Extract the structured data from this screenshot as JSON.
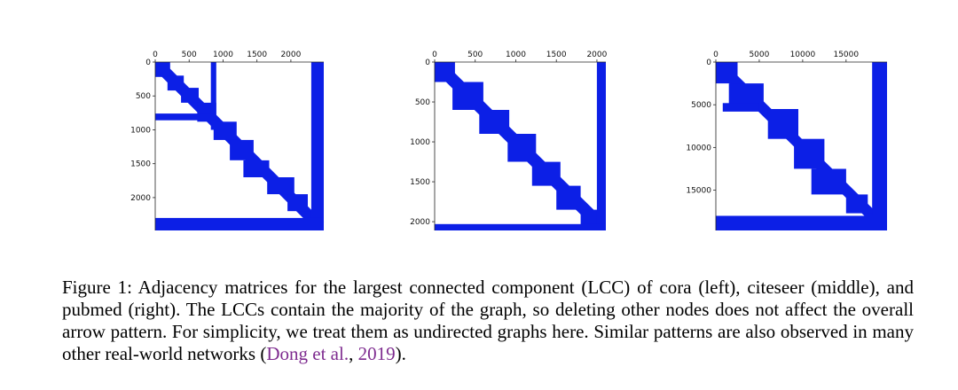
{
  "accent_color": "#0c1fe6",
  "chart_data": [
    {
      "type": "heatmap",
      "dataset": "cora",
      "n": 2485,
      "x_ticks": [
        0,
        500,
        1000,
        1500,
        2000
      ],
      "y_ticks": [
        0,
        500,
        1000,
        1500,
        2000
      ],
      "xlim": [
        0,
        2485
      ],
      "ylim": [
        2485,
        0
      ],
      "x_axis_position": "top",
      "grid": false,
      "band_width": 120,
      "diagonal_blocks": [
        {
          "r0": 0,
          "r1": 220,
          "c0": 0,
          "c1": 220
        },
        {
          "r0": 200,
          "r1": 420,
          "c0": 180,
          "c1": 420
        },
        {
          "r0": 380,
          "r1": 600,
          "c0": 380,
          "c1": 640
        },
        {
          "r0": 600,
          "r1": 880,
          "c0": 620,
          "c1": 900
        },
        {
          "r0": 880,
          "r1": 1150,
          "c0": 860,
          "c1": 1200
        },
        {
          "r0": 1150,
          "r1": 1450,
          "c0": 1100,
          "c1": 1450
        },
        {
          "r0": 1450,
          "r1": 1700,
          "c0": 1300,
          "c1": 1680
        },
        {
          "r0": 1700,
          "r1": 1950,
          "c0": 1650,
          "c1": 2050
        },
        {
          "r0": 1950,
          "r1": 2200,
          "c0": 1950,
          "c1": 2250
        },
        {
          "r0": 2200,
          "r1": 2485,
          "c0": 2200,
          "c1": 2485
        }
      ],
      "off_diagonal_blocks": [
        {
          "r0": 0,
          "r1": 1000,
          "c0": 820,
          "c1": 900
        },
        {
          "r0": 760,
          "r1": 860,
          "c0": 0,
          "c1": 880
        },
        {
          "r0": 0,
          "r1": 2485,
          "c0": 2300,
          "c1": 2485
        },
        {
          "r0": 2300,
          "r1": 2485,
          "c0": 0,
          "c1": 2485
        }
      ]
    },
    {
      "type": "heatmap",
      "dataset": "citeseer",
      "n": 2110,
      "x_ticks": [
        0,
        500,
        1000,
        1500,
        2000
      ],
      "y_ticks": [
        0,
        500,
        1000,
        1500,
        2000
      ],
      "xlim": [
        0,
        2110
      ],
      "ylim": [
        2110,
        0
      ],
      "x_axis_position": "top",
      "grid": false,
      "band_width": 110,
      "diagonal_blocks": [
        {
          "r0": 0,
          "r1": 250,
          "c0": 0,
          "c1": 250
        },
        {
          "r0": 250,
          "r1": 600,
          "c0": 220,
          "c1": 600
        },
        {
          "r0": 600,
          "r1": 900,
          "c0": 550,
          "c1": 920
        },
        {
          "r0": 900,
          "r1": 1250,
          "c0": 900,
          "c1": 1250
        },
        {
          "r0": 1250,
          "r1": 1550,
          "c0": 1200,
          "c1": 1550
        },
        {
          "r0": 1550,
          "r1": 1850,
          "c0": 1500,
          "c1": 1800
        },
        {
          "r0": 1850,
          "r1": 2110,
          "c0": 1800,
          "c1": 2110
        }
      ],
      "off_diagonal_blocks": [
        {
          "r0": 0,
          "r1": 2110,
          "c0": 2000,
          "c1": 2110
        },
        {
          "r0": 2030,
          "r1": 2110,
          "c0": 0,
          "c1": 2110
        }
      ]
    },
    {
      "type": "heatmap",
      "dataset": "pubmed",
      "n": 19717,
      "x_ticks": [
        0,
        5000,
        10000,
        15000
      ],
      "y_ticks": [
        0,
        5000,
        10000,
        15000
      ],
      "xlim": [
        0,
        19717
      ],
      "ylim": [
        19717,
        0
      ],
      "x_axis_position": "top",
      "grid": false,
      "band_width": 900,
      "diagonal_blocks": [
        {
          "r0": 0,
          "r1": 2500,
          "c0": 0,
          "c1": 2500
        },
        {
          "r0": 2500,
          "r1": 5500,
          "c0": 1500,
          "c1": 5500
        },
        {
          "r0": 5500,
          "r1": 9000,
          "c0": 6000,
          "c1": 9500
        },
        {
          "r0": 9000,
          "r1": 12500,
          "c0": 9000,
          "c1": 12500
        },
        {
          "r0": 12500,
          "r1": 15500,
          "c0": 11000,
          "c1": 15000
        },
        {
          "r0": 15500,
          "r1": 17700,
          "c0": 15000,
          "c1": 17500
        },
        {
          "r0": 17700,
          "r1": 19717,
          "c0": 17500,
          "c1": 19717
        }
      ],
      "off_diagonal_blocks": [
        {
          "r0": 4800,
          "r1": 5800,
          "c0": 800,
          "c1": 5000
        },
        {
          "r0": 0,
          "r1": 19717,
          "c0": 18000,
          "c1": 19717
        },
        {
          "r0": 18000,
          "r1": 19717,
          "c0": 0,
          "c1": 19717
        }
      ]
    }
  ],
  "caption": {
    "text_before_cite": "Figure 1: Adjacency matrices for the largest connected component (LCC) of cora (left), citeseer (middle), and pubmed (right). The LCCs contain the majority of the graph, so deleting other nodes does not affect the overall arrow pattern. For simplicity, we treat them as undirected graphs here. Similar patterns are also observed in many other real-world networks (",
    "cite_authors": "Dong et al.",
    "cite_sep": ", ",
    "cite_year": "2019",
    "text_after_cite": ")."
  }
}
